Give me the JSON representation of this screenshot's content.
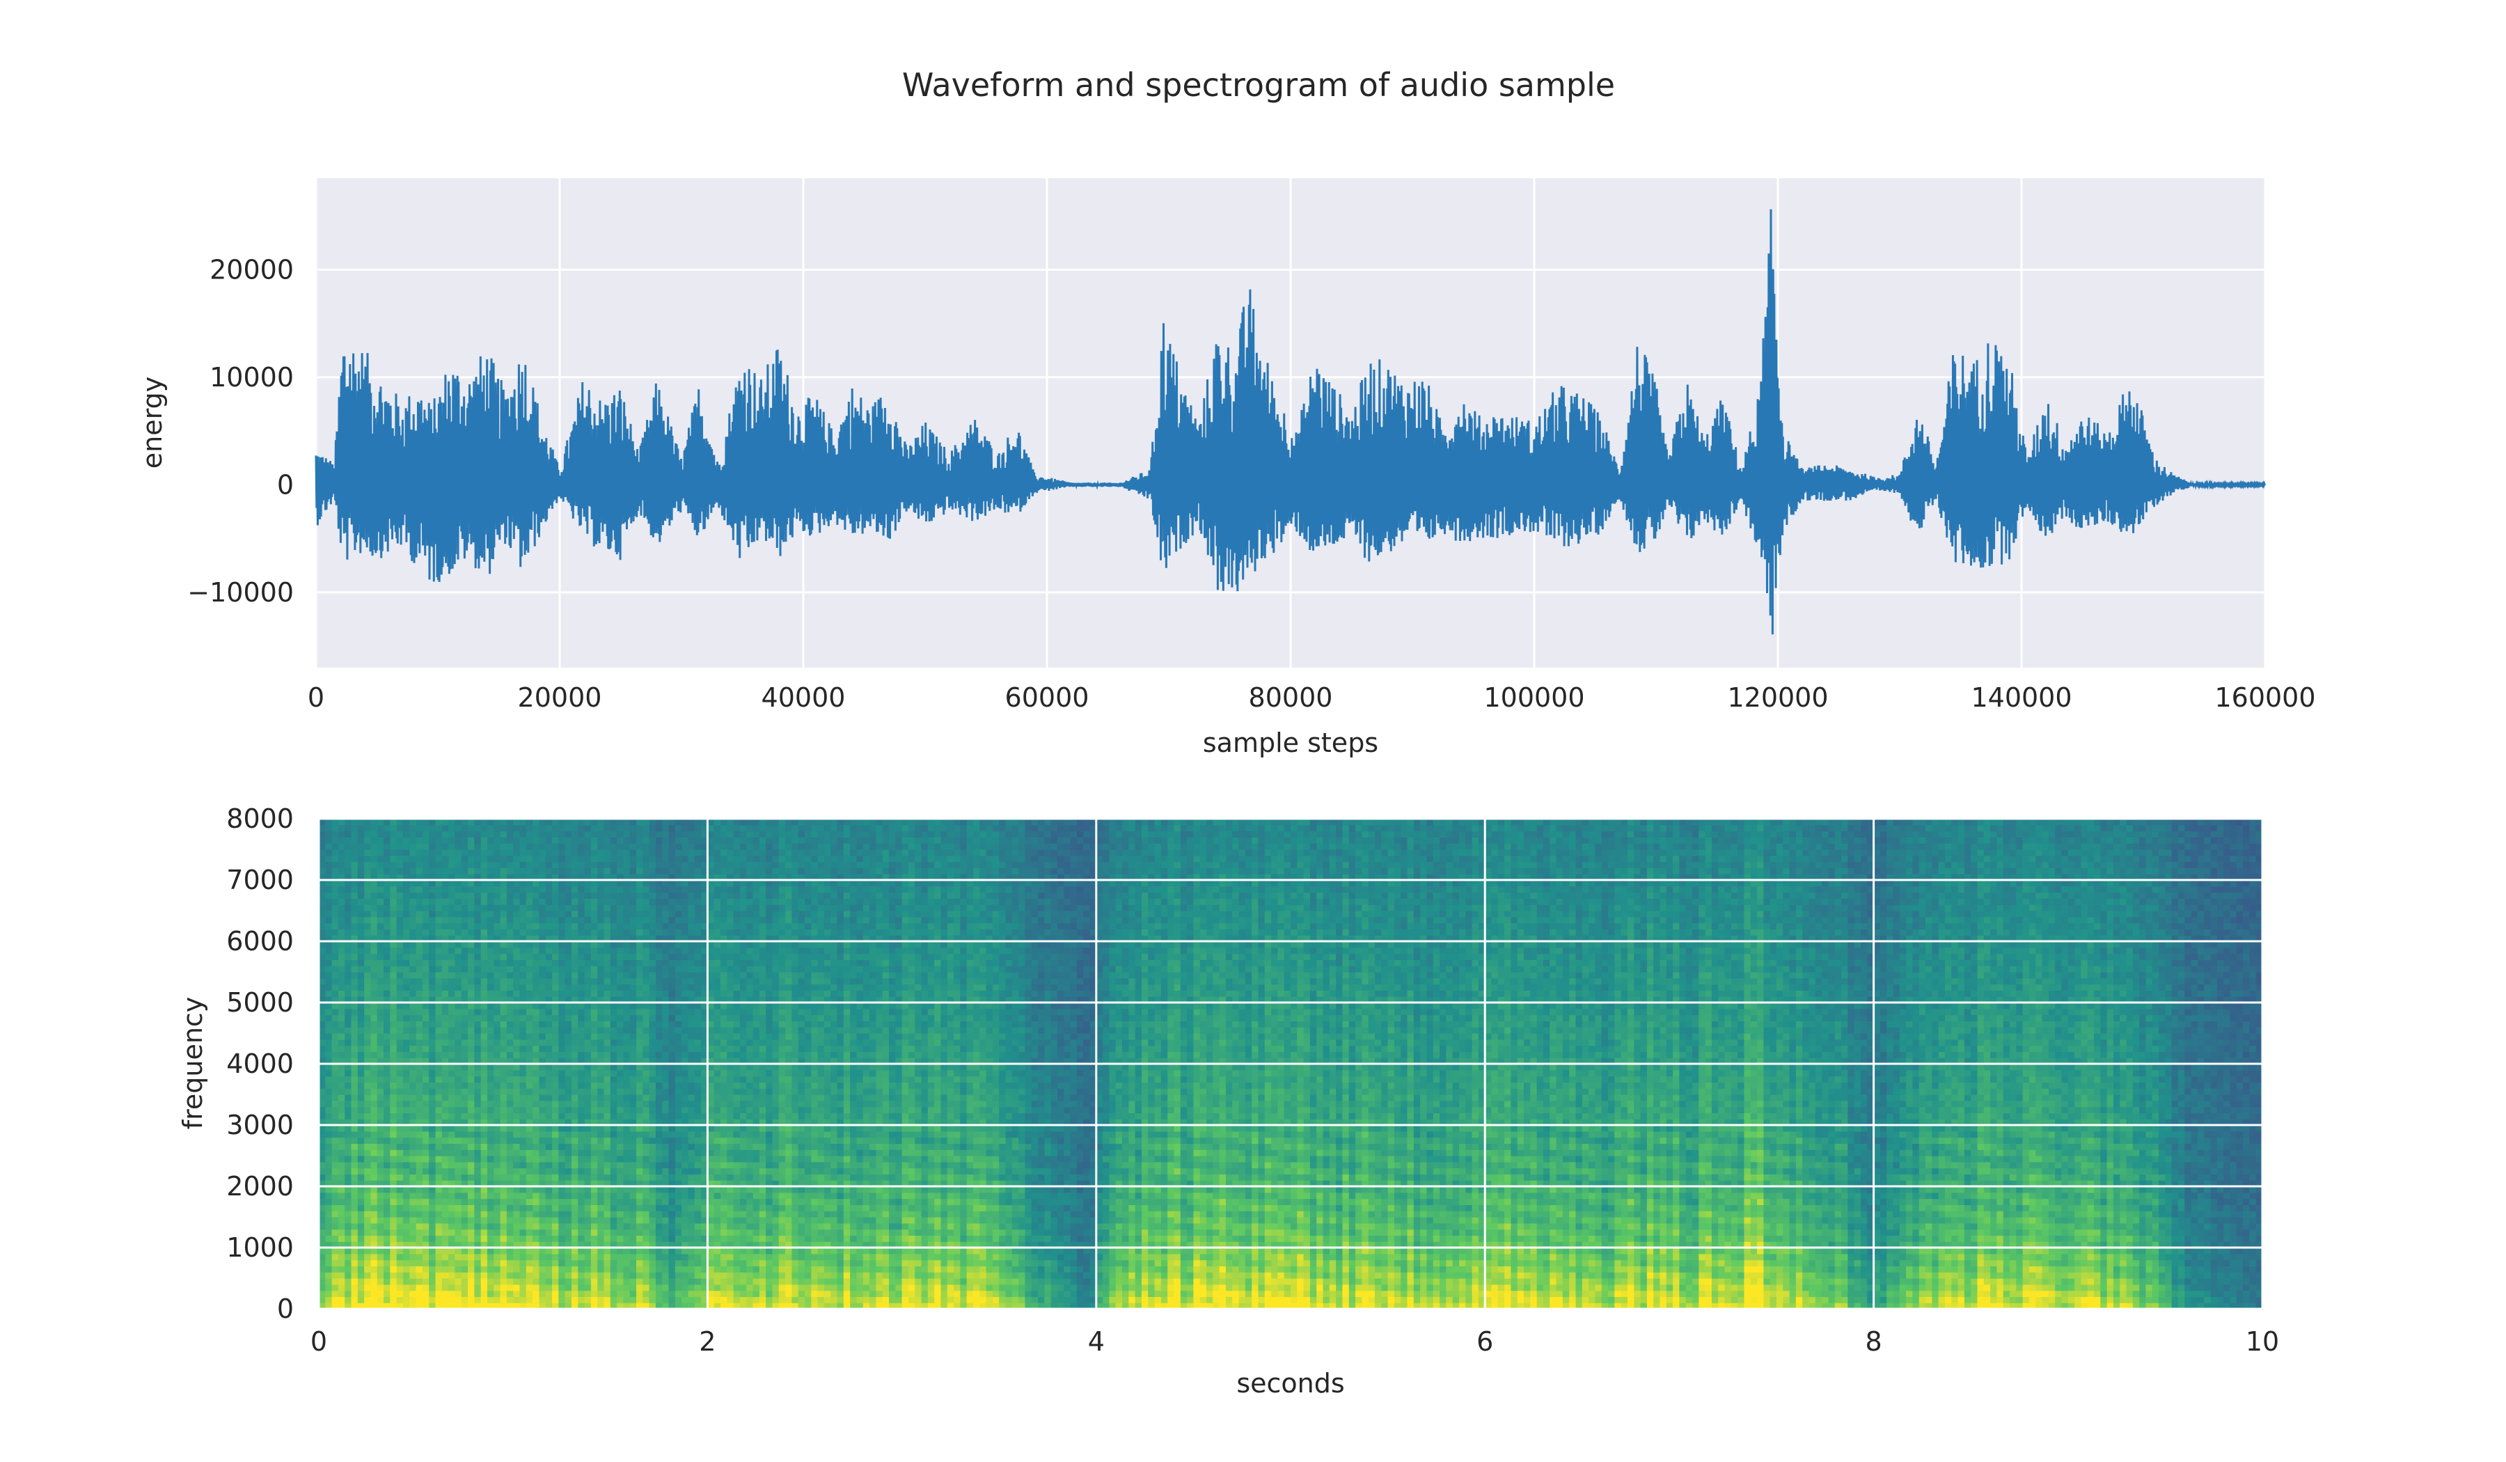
{
  "figure": {
    "title": "Waveform and spectrogram of audio sample"
  },
  "chart_data": [
    {
      "type": "line",
      "xlabel": "sample steps",
      "ylabel": "energy",
      "xlim": [
        0,
        160000
      ],
      "ylim": [
        -17000,
        28500
      ],
      "xticks": [
        0,
        20000,
        40000,
        60000,
        80000,
        100000,
        120000,
        140000,
        160000
      ],
      "xtick_labels": [
        "0",
        "20000",
        "40000",
        "60000",
        "80000",
        "100000",
        "120000",
        "140000",
        "160000"
      ],
      "yticks": [
        -10000,
        0,
        10000,
        20000
      ],
      "ytick_labels": [
        "−10000",
        "0",
        "10000",
        "20000"
      ],
      "grid": true,
      "color": "#2878b5",
      "background": "#eaeaf2",
      "envelope": {
        "x": [
          0,
          1500,
          2200,
          3500,
          5000,
          7000,
          8500,
          9500,
          11000,
          12500,
          14000,
          15500,
          17000,
          18500,
          20000,
          22000,
          23500,
          25000,
          26500,
          28000,
          30000,
          31500,
          33000,
          35000,
          36500,
          38000,
          39500,
          41000,
          42500,
          44000,
          45500,
          47000,
          48500,
          50000,
          52000,
          54000,
          56000,
          57500,
          59000,
          62000,
          66000,
          68500,
          69500,
          71000,
          72500,
          74000,
          75500,
          76500,
          77500,
          79000,
          80500,
          82000,
          83500,
          85000,
          86500,
          88000,
          89500,
          91000,
          92500,
          94000,
          95500,
          97000,
          98500,
          100000,
          102000,
          104000,
          105500,
          107000,
          108500,
          110000,
          111000,
          112500,
          114000,
          115500,
          117000,
          118500,
          119500,
          120500,
          122000,
          124000,
          126000,
          128000,
          130000,
          131500,
          133000,
          134500,
          136000,
          137500,
          139000,
          140500,
          142000,
          143500,
          145000,
          147000,
          149000,
          151000,
          152500,
          154000,
          156000,
          160000
        ],
        "upper": [
          3500,
          2000,
          15000,
          13500,
          11000,
          8000,
          9500,
          7500,
          12000,
          10500,
          13000,
          9000,
          13500,
          6500,
          1500,
          10500,
          8000,
          9500,
          3000,
          10000,
          2500,
          10000,
          2000,
          13000,
          10000,
          13500,
          7500,
          8500,
          5000,
          9500,
          7500,
          9500,
          3500,
          6000,
          3000,
          6500,
          3000,
          6000,
          1000,
          200,
          200,
          1500,
          16500,
          10500,
          6000,
          15000,
          12500,
          19500,
          14000,
          8500,
          5000,
          12500,
          9500,
          7000,
          12000,
          11500,
          10000,
          10500,
          5500,
          9000,
          6500,
          7000,
          6500,
          6000,
          9500,
          8500,
          6500,
          1500,
          14000,
          9500,
          2500,
          10000,
          4500,
          8500,
          1500,
          9000,
          27000,
          5000,
          1500,
          2000,
          1500,
          700,
          1000,
          7500,
          2000,
          13500,
          11500,
          14500,
          12000,
          2500,
          9000,
          4000,
          7000,
          5000,
          10500,
          2500,
          1000,
          150,
          100,
          100
        ],
        "lower": [
          -4000,
          -1500,
          -7500,
          -6500,
          -7000,
          -6000,
          -8000,
          -9500,
          -8500,
          -7000,
          -9000,
          -5500,
          -8500,
          -4500,
          -1200,
          -5000,
          -6500,
          -7000,
          -2500,
          -6000,
          -2500,
          -5500,
          -2000,
          -8000,
          -5000,
          -7000,
          -4500,
          -5000,
          -3500,
          -5000,
          -4500,
          -5500,
          -2500,
          -4000,
          -2500,
          -3500,
          -2500,
          -3000,
          -800,
          -200,
          -200,
          -1500,
          -9000,
          -6000,
          -4000,
          -10000,
          -10500,
          -9500,
          -7500,
          -6000,
          -4500,
          -7000,
          -6000,
          -5000,
          -7500,
          -6500,
          -5500,
          -6000,
          -4500,
          -5500,
          -5000,
          -5000,
          -4500,
          -4500,
          -6000,
          -5500,
          -4500,
          -1200,
          -6500,
          -5500,
          -2000,
          -6000,
          -3500,
          -5000,
          -1500,
          -7000,
          -15000,
          -4500,
          -1500,
          -1500,
          -1500,
          -600,
          -800,
          -5000,
          -1500,
          -7500,
          -8000,
          -8000,
          -7000,
          -2000,
          -5500,
          -3000,
          -4500,
          -3500,
          -5000,
          -2000,
          -800,
          -150,
          -100,
          -100
        ]
      }
    },
    {
      "type": "heatmap",
      "xlabel": "seconds",
      "ylabel": "frequency",
      "xlim": [
        0,
        10
      ],
      "ylim": [
        0,
        8000
      ],
      "xticks": [
        0,
        2,
        4,
        6,
        8,
        10
      ],
      "xtick_labels": [
        "0",
        "2",
        "4",
        "6",
        "8",
        "10"
      ],
      "yticks": [
        0,
        1000,
        2000,
        3000,
        4000,
        5000,
        6000,
        7000,
        8000
      ],
      "ytick_labels": [
        "0",
        "1000",
        "2000",
        "3000",
        "4000",
        "5000",
        "6000",
        "7000",
        "8000"
      ],
      "grid": true,
      "colormap": [
        "#3b528b",
        "#21918c",
        "#5ec962",
        "#fde725"
      ],
      "time_activity": {
        "t": [
          0,
          0.1,
          0.3,
          0.5,
          0.7,
          0.9,
          1.1,
          1.3,
          1.5,
          1.7,
          1.8,
          2.0,
          2.2,
          2.4,
          2.6,
          2.8,
          3.0,
          3.2,
          3.4,
          3.6,
          3.8,
          3.95,
          4.1,
          4.3,
          4.5,
          4.7,
          4.9,
          5.1,
          5.3,
          5.5,
          5.7,
          5.9,
          6.1,
          6.3,
          6.5,
          6.7,
          6.9,
          7.1,
          7.3,
          7.45,
          7.6,
          7.8,
          8.0,
          8.2,
          8.4,
          8.6,
          8.8,
          9.0,
          9.2,
          9.4,
          9.6,
          10.0
        ],
        "level": [
          0.65,
          0.8,
          0.9,
          0.8,
          0.85,
          0.8,
          0.75,
          0.8,
          0.7,
          0.75,
          0.4,
          0.7,
          0.75,
          0.8,
          0.75,
          0.7,
          0.75,
          0.8,
          0.75,
          0.5,
          0.3,
          0.15,
          0.6,
          0.85,
          0.8,
          0.9,
          0.8,
          0.85,
          0.75,
          0.8,
          0.75,
          0.7,
          0.8,
          0.75,
          0.7,
          0.75,
          0.8,
          0.75,
          0.85,
          0.9,
          0.75,
          0.6,
          0.3,
          0.55,
          0.7,
          0.85,
          0.8,
          0.75,
          0.7,
          0.6,
          0.25,
          0.1
        ]
      }
    }
  ]
}
